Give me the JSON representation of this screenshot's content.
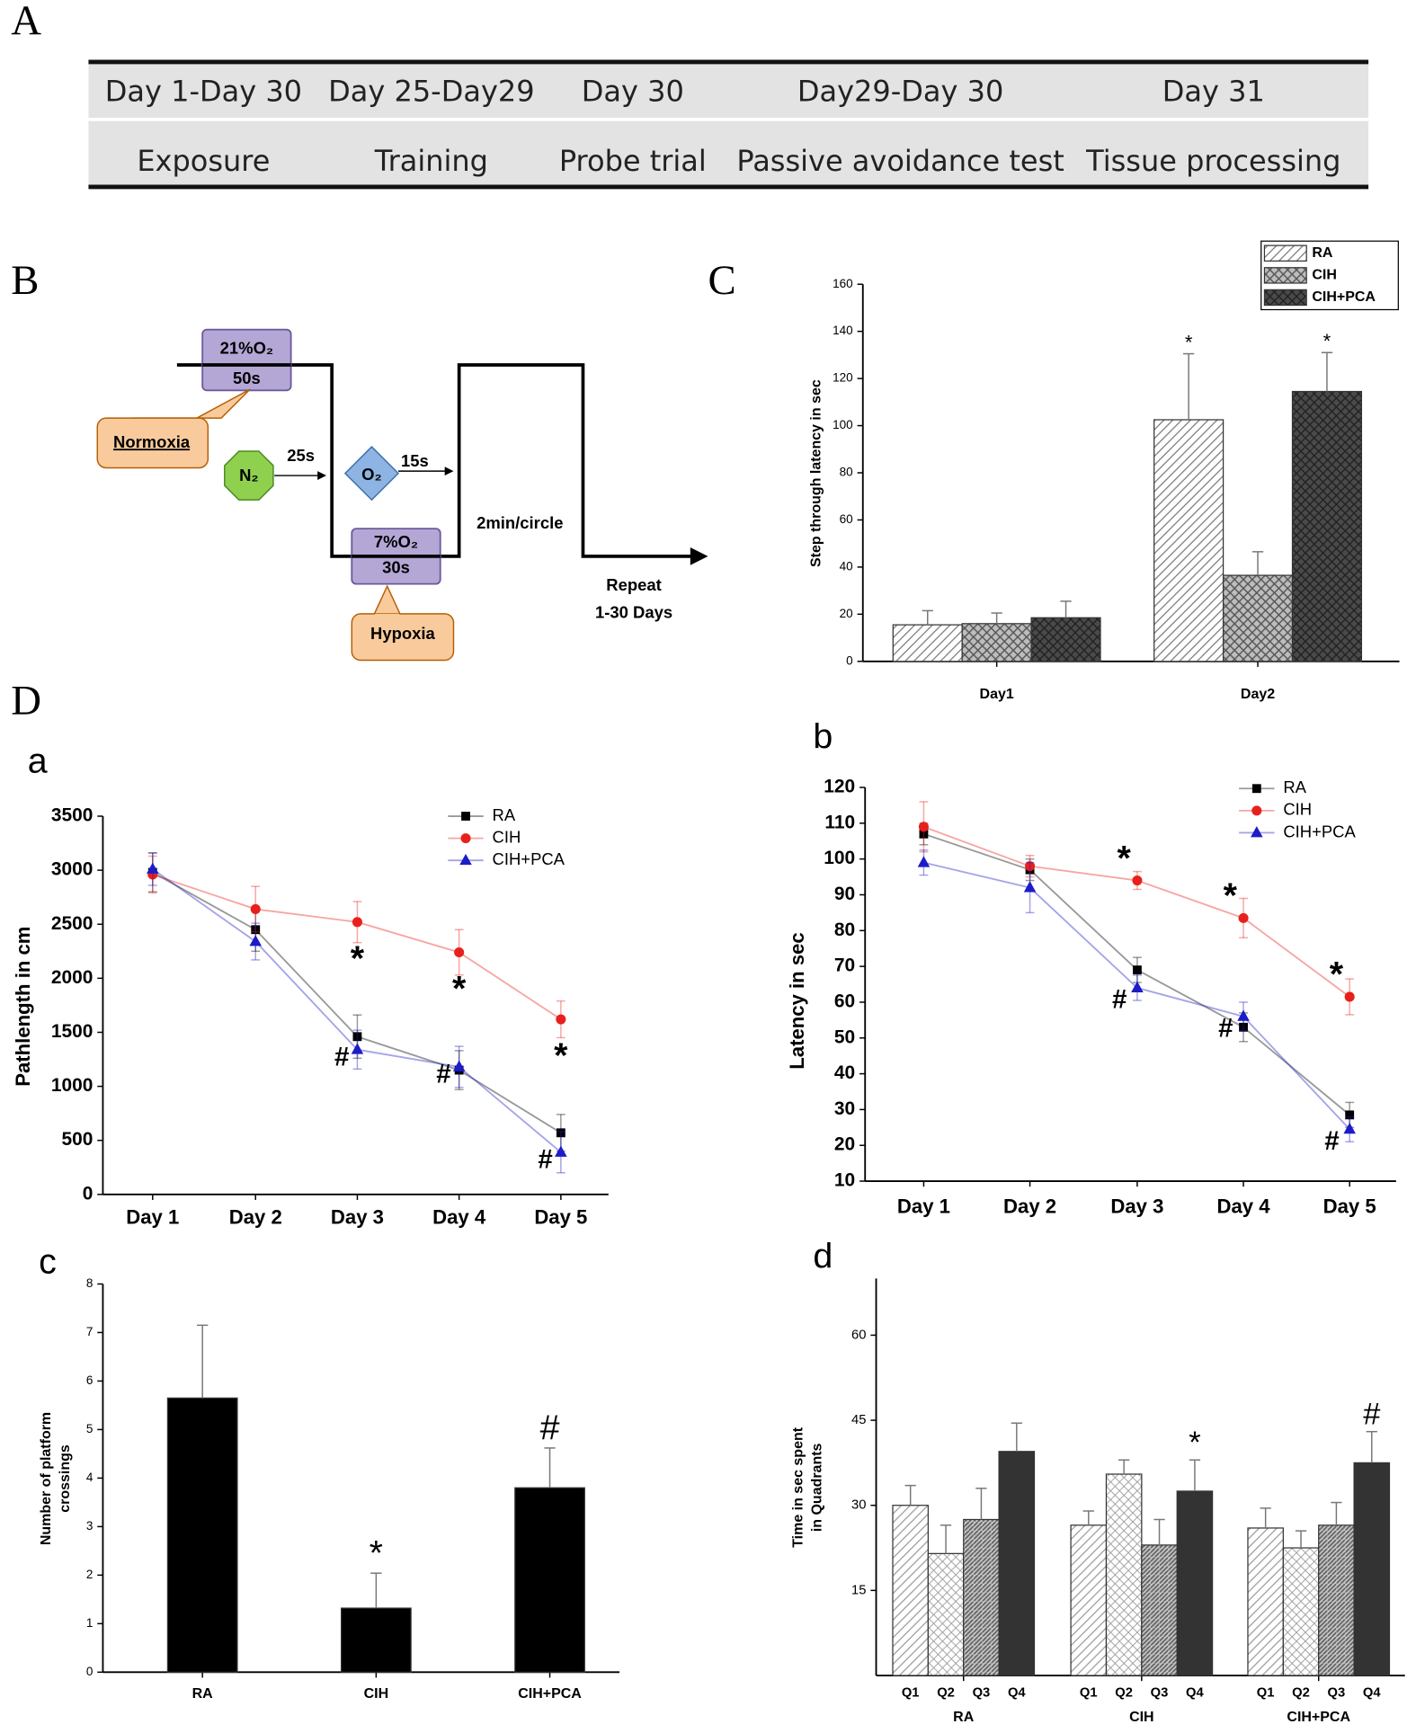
{
  "panel_labels": [
    "A",
    "B",
    "C",
    "D",
    "a",
    "b",
    "c",
    "d"
  ],
  "timeline": {
    "rows": [
      [
        "Day 1-Day 30",
        "Day 25-Day29",
        "Day 30",
        "Day29-Day 30",
        "Day 31"
      ],
      [
        "Exposure",
        "Training",
        "Probe trial",
        "Passive avoidance test",
        "Tissue processing"
      ]
    ]
  },
  "diagram": {
    "normoxia_box": [
      "21%O₂",
      "50s"
    ],
    "normoxia": "Normoxia",
    "n2": "N₂",
    "n2_time": "25s",
    "o2": "O₂",
    "o2_time": "15s",
    "hypoxia_box": [
      "7%O₂",
      "30s"
    ],
    "hypoxia": "Hypoxia",
    "cycle": "2min/circle",
    "repeat": [
      "Repeat",
      "1-30 Days"
    ]
  },
  "chart_data": [
    {
      "type": "bar",
      "ylabel": "Step through latency in sec",
      "categories": [
        "Day1",
        "Day2"
      ],
      "series": [
        {
          "name": "RA",
          "color": "#777777",
          "hatch": "diagonal",
          "values": [
            15.5,
            102.5
          ],
          "errors": [
            6,
            28
          ],
          "marks": [
            null,
            "*"
          ]
        },
        {
          "name": "CIH",
          "color": "#555555",
          "hatch": "cross",
          "values": [
            16,
            36.5
          ],
          "errors": [
            4.5,
            10
          ]
        },
        {
          "name": "CIH+PCA",
          "color": "#222222",
          "hatch": "dense",
          "values": [
            18.5,
            114.5
          ],
          "errors": [
            7,
            16.5
          ],
          "marks": [
            null,
            "*"
          ]
        }
      ],
      "ylim": [
        0,
        160
      ],
      "yticks": [
        0,
        20,
        40,
        60,
        80,
        100,
        120,
        140,
        160
      ],
      "legend": "upper right"
    },
    {
      "type": "line",
      "ylabel": "Pathlength in cm",
      "categories": [
        "Day 1",
        "Day 2",
        "Day 3",
        "Day 4",
        "Day 5"
      ],
      "series": [
        {
          "name": "RA",
          "color": "#000000",
          "marker": "square",
          "values": [
            2980,
            2450,
            1460,
            1150,
            570
          ],
          "errors": [
            180,
            200,
            200,
            180,
            170
          ]
        },
        {
          "name": "CIH",
          "color": "#e8201c",
          "marker": "circle",
          "values": [
            2960,
            2640,
            2520,
            2240,
            1620
          ],
          "errors": [
            170,
            210,
            190,
            210,
            170
          ],
          "marks": [
            null,
            null,
            "*",
            "*",
            "*"
          ]
        },
        {
          "name": "CIH+PCA",
          "color": "#1c1cc8",
          "marker": "triangle",
          "values": [
            3010,
            2340,
            1340,
            1180,
            390
          ],
          "errors": [
            150,
            170,
            180,
            190,
            190
          ],
          "marks": [
            null,
            null,
            "#",
            "#",
            "#"
          ]
        }
      ],
      "ylim": [
        0,
        3500
      ],
      "yticks": [
        0,
        500,
        1000,
        1500,
        2000,
        2500,
        3000,
        3500
      ],
      "legend": "upper right"
    },
    {
      "type": "line",
      "ylabel": "Latency in sec",
      "categories": [
        "Day 1",
        "Day 2",
        "Day 3",
        "Day 4",
        "Day 5"
      ],
      "series": [
        {
          "name": "RA",
          "color": "#000000",
          "marker": "square",
          "values": [
            107,
            97,
            69,
            53,
            28.5
          ],
          "errors": [
            3,
            3,
            3.5,
            4,
            3.5
          ]
        },
        {
          "name": "CIH",
          "color": "#e8201c",
          "marker": "circle",
          "values": [
            109,
            98,
            94,
            83.5,
            61.5
          ],
          "errors": [
            7,
            3,
            2.5,
            5.5,
            5
          ],
          "marks": [
            null,
            null,
            "*",
            "*",
            "*"
          ]
        },
        {
          "name": "CIH+PCA",
          "color": "#1c1cc8",
          "marker": "triangle",
          "values": [
            99,
            92,
            64,
            56,
            24.5
          ],
          "errors": [
            3.5,
            7,
            3.5,
            4,
            3.5
          ],
          "marks": [
            null,
            null,
            "#",
            "#",
            "#"
          ]
        }
      ],
      "ylim": [
        10,
        120
      ],
      "yticks": [
        10,
        20,
        30,
        40,
        50,
        60,
        70,
        80,
        90,
        100,
        110,
        120
      ],
      "legend": "upper right"
    },
    {
      "type": "bar",
      "ylabel": [
        "Number of platform",
        "crossings"
      ],
      "categories": [
        "RA",
        "CIH",
        "CIH+PCA"
      ],
      "series": [
        {
          "color": "#000000",
          "hatch": "solid",
          "values": [
            5.65,
            1.32,
            3.8
          ],
          "errors": [
            1.5,
            0.72,
            0.82
          ],
          "marks": [
            null,
            "*",
            "#"
          ]
        }
      ],
      "ylim": [
        0,
        8
      ],
      "yticks": [
        0,
        1,
        2,
        3,
        4,
        5,
        6,
        7,
        8
      ]
    },
    {
      "type": "bar",
      "ylabel": [
        "Time in sec spent",
        "in Quadrants"
      ],
      "categories": [
        "RA",
        "CIH",
        "CIH+PCA"
      ],
      "series": [
        {
          "name": "Q1",
          "color": "#999999",
          "hatch": "diagonal",
          "values": [
            30,
            26.5,
            26
          ],
          "errors": [
            3.5,
            2.5,
            3.5
          ]
        },
        {
          "name": "Q2",
          "color": "#999999",
          "hatch": "dots",
          "values": [
            21.5,
            35.5,
            22.5
          ],
          "errors": [
            5,
            2.5,
            3
          ]
        },
        {
          "name": "Q3",
          "color": "#666666",
          "hatch": "diagonal-dense",
          "values": [
            27.5,
            23,
            26.5
          ],
          "errors": [
            5.5,
            4.5,
            4
          ]
        },
        {
          "name": "Q4",
          "color": "#333333",
          "hatch": "solid",
          "values": [
            39.5,
            32.5,
            37.5
          ],
          "errors": [
            5,
            5.5,
            5.5
          ],
          "marks": [
            null,
            "*",
            "#"
          ]
        }
      ],
      "ylim": [
        0,
        70
      ],
      "yticks": [
        15,
        30,
        45,
        60
      ],
      "series_labels": true
    }
  ]
}
